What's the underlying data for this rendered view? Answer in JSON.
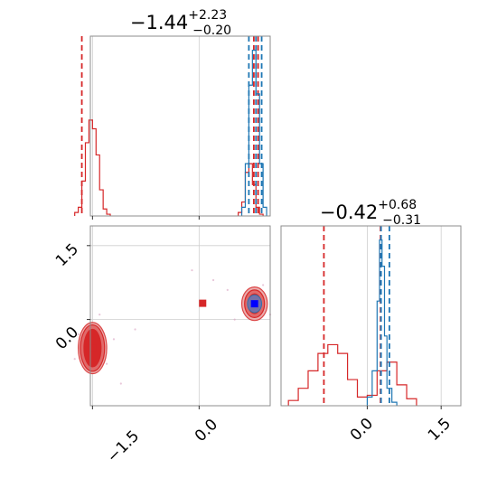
{
  "chart_data": {
    "type": "corner",
    "parameters": [
      {
        "title": {
          "median": "−1.44",
          "plus": "+2.23",
          "minus": "−0.20"
        }
      },
      {
        "title": {
          "median": "−0.42",
          "plus": "+0.68",
          "minus": "−0.31"
        }
      }
    ],
    "ticks": {
      "x0": {
        "values": [
          -1.5,
          0.0
        ],
        "labels": [
          "−1.5",
          "0.0"
        ]
      },
      "y1": {
        "values": [
          1.5,
          0.0
        ],
        "labels": [
          "1.5",
          "0.0"
        ]
      },
      "x1": {
        "values": [
          0.0,
          1.5
        ],
        "labels": [
          "0.0",
          "1.5"
        ]
      }
    },
    "ranges": {
      "p0": [
        -1.53,
        1.0
      ],
      "p1": [
        -1.75,
        1.9
      ]
    },
    "grid": true,
    "colors": {
      "red": "#d62728",
      "blue": "#1f77b4",
      "navy": "#0000ff",
      "fill_red": "#e8a0a0"
    },
    "series": [
      {
        "name": "",
        "color": "#d62728",
        "hist_p0": {
          "bin_edges": [
            -1.75,
            -1.7,
            -1.65,
            -1.6,
            -1.55,
            -1.5,
            -1.45,
            -1.4,
            -1.35,
            -1.3,
            -1.25
          ],
          "heights": [
            0.02,
            0.05,
            0.2,
            0.42,
            0.55,
            0.5,
            0.35,
            0.15,
            0.04,
            0.01
          ]
        },
        "hist_p0_b": {
          "bin_edges": [
            0.55,
            0.6,
            0.65,
            0.7,
            0.75,
            0.8,
            0.85,
            0.9
          ],
          "heights": [
            0.02,
            0.08,
            0.25,
            0.3,
            0.18,
            0.05,
            0.01
          ]
        },
        "hist_p1": {
          "bin_edges": [
            -1.6,
            -1.4,
            -1.2,
            -1.0,
            -0.8,
            -0.6,
            -0.4,
            -0.2,
            0.0,
            0.2,
            0.4,
            0.6,
            0.8,
            1.0
          ],
          "heights": [
            0.03,
            0.1,
            0.2,
            0.3,
            0.35,
            0.3,
            0.15,
            0.05,
            0.06,
            0.2,
            0.25,
            0.12,
            0.04
          ]
        },
        "lines_p0": [
          -1.65,
          0.83,
          0.77
        ],
        "lines_p1": [
          -0.88,
          0.27
        ],
        "median": [
          0.05,
          0.33
        ],
        "contours": [
          {
            "center": [
              -1.5,
              -0.58
            ],
            "radii": [
              [
                0.2,
                0.52
              ],
              [
                0.17,
                0.47
              ],
              [
                0.12,
                0.38
              ]
            ]
          },
          {
            "center": [
              0.78,
              0.32
            ],
            "radii": [
              [
                0.18,
                0.34
              ],
              [
                0.14,
                0.28
              ],
              [
                0.09,
                0.2
              ]
            ]
          }
        ]
      },
      {
        "name": "",
        "color": "#1f77b4",
        "hist_p0": {
          "bin_edges": [
            0.6,
            0.65,
            0.7,
            0.75,
            0.8,
            0.85,
            0.9,
            0.95
          ],
          "heights": [
            0.05,
            0.3,
            0.75,
            0.95,
            0.7,
            0.3,
            0.05
          ]
        },
        "hist_p1": {
          "bin_edges": [
            0.0,
            0.1,
            0.2,
            0.25,
            0.3,
            0.35,
            0.4,
            0.5,
            0.6
          ],
          "heights": [
            0.05,
            0.2,
            0.6,
            0.95,
            0.8,
            0.4,
            0.1,
            0.02
          ]
        },
        "lines_p0": [
          0.7,
          0.8,
          0.88
        ],
        "lines_p1": [
          0.28,
          0.45
        ],
        "truth": [
          0.78,
          0.32
        ]
      }
    ],
    "scatter_points": [
      [
        -1.7,
        -0.3
      ],
      [
        -1.3,
        -0.9
      ],
      [
        -1.2,
        -0.4
      ],
      [
        -1.75,
        -0.8
      ],
      [
        -0.9,
        -0.2
      ],
      [
        -0.1,
        1.0
      ],
      [
        0.4,
        0.6
      ],
      [
        1.0,
        0.1
      ],
      [
        0.5,
        0.0
      ],
      [
        -1.1,
        -1.3
      ],
      [
        -1.4,
        0.1
      ],
      [
        0.9,
        0.7
      ],
      [
        0.2,
        0.8
      ]
    ]
  }
}
